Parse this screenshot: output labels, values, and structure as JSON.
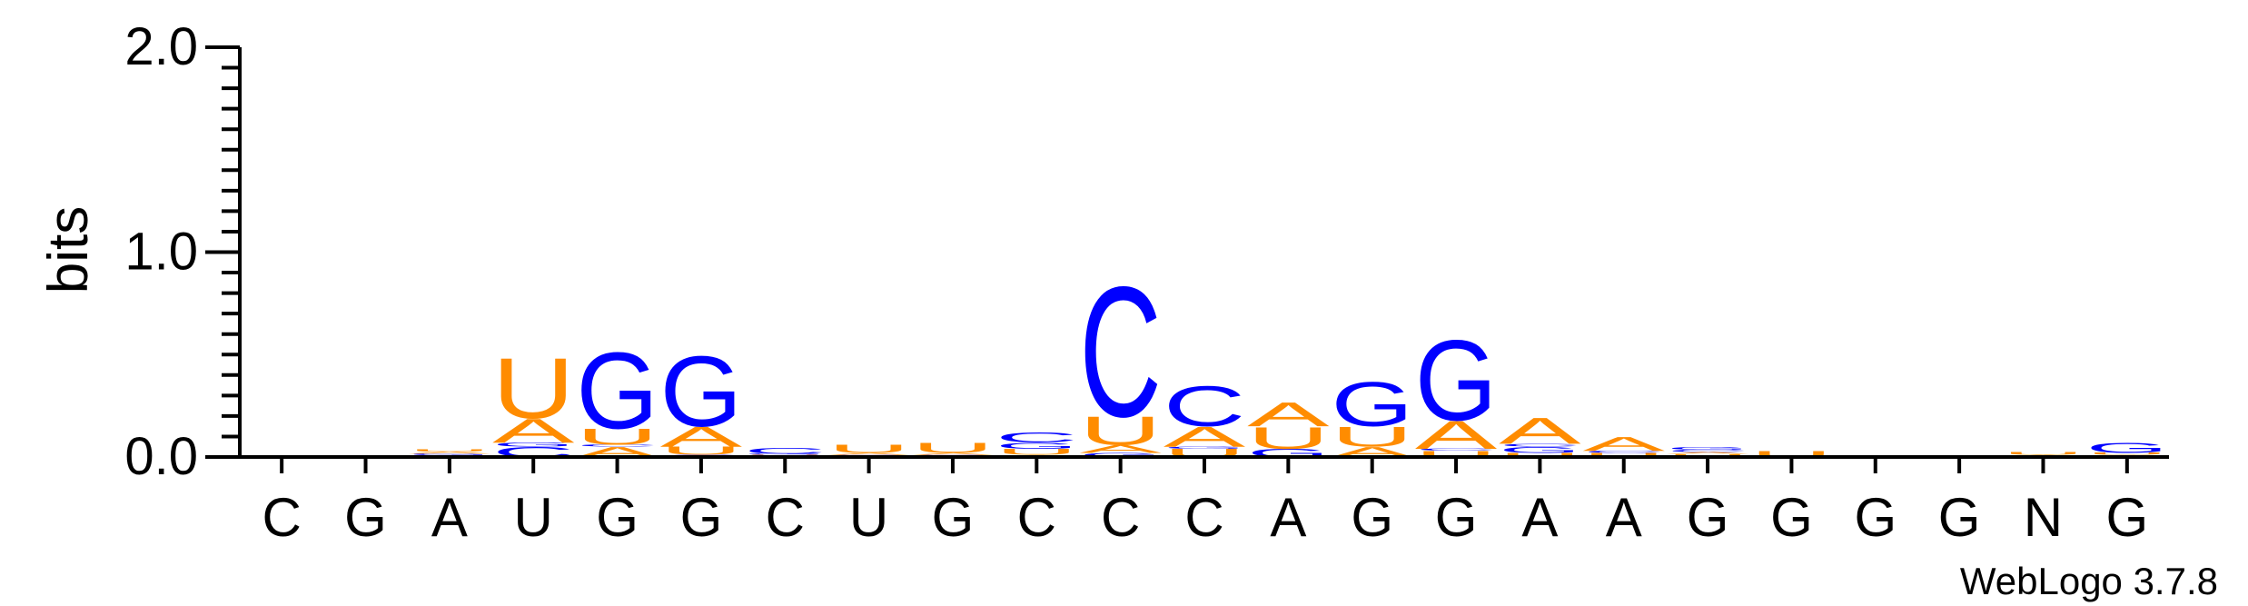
{
  "chart_data": {
    "type": "sequence-logo",
    "ylabel": "bits",
    "ylim": [
      0,
      2.0
    ],
    "yticks": [
      {
        "value": 0.0,
        "label": "0.0"
      },
      {
        "value": 1.0,
        "label": "1.0"
      },
      {
        "value": 2.0,
        "label": "2.0"
      }
    ],
    "y_minor_step": 0.1,
    "x_labels": [
      "C",
      "G",
      "A",
      "U",
      "G",
      "G",
      "C",
      "U",
      "G",
      "C",
      "C",
      "C",
      "A",
      "G",
      "G",
      "A",
      "A",
      "G",
      "G",
      "G",
      "G",
      "N",
      "G"
    ],
    "colors": {
      "A": "#ff8c00",
      "U": "#ff8c00",
      "C": "#0000ff",
      "G": "#0000ff"
    },
    "positions": [
      {
        "stack": []
      },
      {
        "stack": []
      },
      {
        "stack": [
          {
            "letter": "C",
            "height": 0.008
          },
          {
            "letter": "G",
            "height": 0.008
          },
          {
            "letter": "A",
            "height": 0.01
          },
          {
            "letter": "U",
            "height": 0.012
          }
        ]
      },
      {
        "stack": [
          {
            "letter": "C",
            "height": 0.05
          },
          {
            "letter": "G",
            "height": 0.02
          },
          {
            "letter": "A",
            "height": 0.12
          },
          {
            "letter": "U",
            "height": 0.3
          }
        ]
      },
      {
        "stack": [
          {
            "letter": "A",
            "height": 0.05
          },
          {
            "letter": "C",
            "height": 0.01
          },
          {
            "letter": "U",
            "height": 0.08
          },
          {
            "letter": "G",
            "height": 0.38
          }
        ]
      },
      {
        "stack": [
          {
            "letter": "C",
            "height": 0.01
          },
          {
            "letter": "U",
            "height": 0.04
          },
          {
            "letter": "A",
            "height": 0.1
          },
          {
            "letter": "G",
            "height": 0.35
          }
        ]
      },
      {
        "stack": [
          {
            "letter": "A",
            "height": 0.005
          },
          {
            "letter": "U",
            "height": 0.005
          },
          {
            "letter": "G",
            "height": 0.005
          },
          {
            "letter": "C",
            "height": 0.03
          }
        ]
      },
      {
        "stack": [
          {
            "letter": "C",
            "height": 0.005
          },
          {
            "letter": "G",
            "height": 0.005
          },
          {
            "letter": "A",
            "height": 0.01
          },
          {
            "letter": "U",
            "height": 0.04
          }
        ]
      },
      {
        "stack": [
          {
            "letter": "C",
            "height": 0.005
          },
          {
            "letter": "G",
            "height": 0.005
          },
          {
            "letter": "A",
            "height": 0.01
          },
          {
            "letter": "U",
            "height": 0.05
          }
        ]
      },
      {
        "stack": [
          {
            "letter": "A",
            "height": 0.01
          },
          {
            "letter": "U",
            "height": 0.03
          },
          {
            "letter": "G",
            "height": 0.03
          },
          {
            "letter": "C",
            "height": 0.05
          }
        ]
      },
      {
        "stack": [
          {
            "letter": "G",
            "height": 0.02
          },
          {
            "letter": "A",
            "height": 0.04
          },
          {
            "letter": "U",
            "height": 0.14
          },
          {
            "letter": "C",
            "height": 0.65
          }
        ]
      },
      {
        "stack": [
          {
            "letter": "U",
            "height": 0.04
          },
          {
            "letter": "G",
            "height": 0.01
          },
          {
            "letter": "A",
            "height": 0.1
          },
          {
            "letter": "C",
            "height": 0.2
          }
        ]
      },
      {
        "stack": [
          {
            "letter": "G",
            "height": 0.04
          },
          {
            "letter": "U",
            "height": 0.11
          },
          {
            "letter": "A",
            "height": 0.12
          }
        ]
      },
      {
        "stack": [
          {
            "letter": "A",
            "height": 0.05
          },
          {
            "letter": "U",
            "height": 0.1
          },
          {
            "letter": "G",
            "height": 0.22
          }
        ]
      },
      {
        "stack": [
          {
            "letter": "U",
            "height": 0.03
          },
          {
            "letter": "C",
            "height": 0.01
          },
          {
            "letter": "A",
            "height": 0.14
          },
          {
            "letter": "G",
            "height": 0.4
          }
        ]
      },
      {
        "stack": [
          {
            "letter": "U",
            "height": 0.02
          },
          {
            "letter": "G",
            "height": 0.03
          },
          {
            "letter": "C",
            "height": 0.015
          },
          {
            "letter": "A",
            "height": 0.13
          }
        ]
      },
      {
        "stack": [
          {
            "letter": "U",
            "height": 0.02
          },
          {
            "letter": "C",
            "height": 0.01
          },
          {
            "letter": "A",
            "height": 0.07
          }
        ]
      },
      {
        "stack": [
          {
            "letter": "U",
            "height": 0.015
          },
          {
            "letter": "A",
            "height": 0.01
          },
          {
            "letter": "C",
            "height": 0.01
          },
          {
            "letter": "G",
            "height": 0.015
          }
        ]
      },
      {
        "stack": [
          {
            "letter": "U",
            "height": 0.03
          }
        ]
      },
      {
        "stack": []
      },
      {
        "stack": []
      },
      {
        "stack": [
          {
            "letter": "C",
            "height": 0.005
          },
          {
            "letter": "A",
            "height": 0.005
          },
          {
            "letter": "U",
            "height": 0.015
          }
        ]
      },
      {
        "stack": [
          {
            "letter": "A",
            "height": 0.01
          },
          {
            "letter": "U",
            "height": 0.01
          },
          {
            "letter": "G",
            "height": 0.05
          }
        ]
      }
    ]
  },
  "footer": {
    "version_label": "WebLogo 3.7.8"
  }
}
